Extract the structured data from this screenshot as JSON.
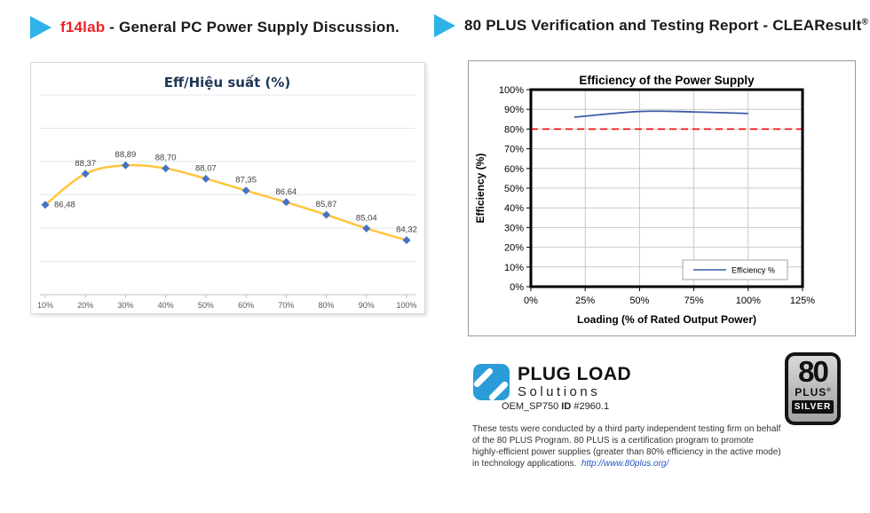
{
  "headers": {
    "left": {
      "brand": "f14lab",
      "brand_color": "#ec2227",
      "rest": " - General PC Power Supply Discussion.",
      "arrow_color": "#2eb3e8"
    },
    "right": {
      "text": "80 PLUS Verification and Testing Report - CLEAResult",
      "reg": "®",
      "arrow_color": "#2eb3e8"
    }
  },
  "chart_data": [
    {
      "type": "line",
      "title": "Eff/Hiệu suất (%)",
      "title_color": "#1f3756",
      "categories": [
        "10%",
        "20%",
        "30%",
        "40%",
        "50%",
        "60%",
        "70%",
        "80%",
        "90%",
        "100%"
      ],
      "values": [
        86.48,
        88.37,
        88.89,
        88.7,
        88.07,
        87.35,
        86.64,
        85.87,
        85.04,
        84.32
      ],
      "data_labels": [
        "86,48",
        "88,37",
        "88,89",
        "88,70",
        "88,07",
        "87,35",
        "86,64",
        "85,87",
        "85,04",
        "84,32"
      ],
      "line_color": "#ffc53d",
      "marker_color": "#4472c4",
      "xlabel": "",
      "ylabel": "",
      "ylim": [
        81,
        93.5
      ],
      "grid": true,
      "legend": false
    },
    {
      "type": "line",
      "title": "Efficiency of the Power Supply",
      "xlabel": "Loading (% of Rated Output Power)",
      "ylabel": "Efficiency (%)",
      "x_ticks": [
        "0%",
        "25%",
        "50%",
        "75%",
        "100%",
        "125%"
      ],
      "y_ticks": [
        "0%",
        "10%",
        "20%",
        "30%",
        "40%",
        "50%",
        "60%",
        "70%",
        "80%",
        "90%",
        "100%"
      ],
      "xlim": [
        0,
        125
      ],
      "ylim": [
        0,
        100
      ],
      "grid": true,
      "legend_position": "inside bottom-right",
      "series": [
        {
          "name": "Efficiency %",
          "color": "#3c5ca8",
          "x": [
            20,
            50,
            75,
            100
          ],
          "y": [
            86.0,
            88.9,
            88.7,
            87.9
          ]
        }
      ],
      "reference_line": {
        "y": 80,
        "color": "#ff0000",
        "style": "dashed"
      },
      "legend_label": "Efficiency %"
    }
  ],
  "footer": {
    "logo": {
      "title": "PLUG LOAD",
      "subtitle": "Solutions",
      "icon_color": "#2b9cd8"
    },
    "id_line": {
      "model": "OEM_SP750",
      "id_label": "ID",
      "id_value": "#2960.1"
    },
    "badge": {
      "number": "80",
      "plus": "PLUS",
      "reg": "®",
      "tier": "SILVER"
    },
    "disclaimer": {
      "text": "These tests were conducted by a third party independent testing firm on behalf of the 80 PLUS Program. 80 PLUS is a certification program to promote highly-efficient power supplies (greater than 80% efficiency in the active mode) in technology applications.",
      "link": "http://www.80plus.org/"
    }
  }
}
